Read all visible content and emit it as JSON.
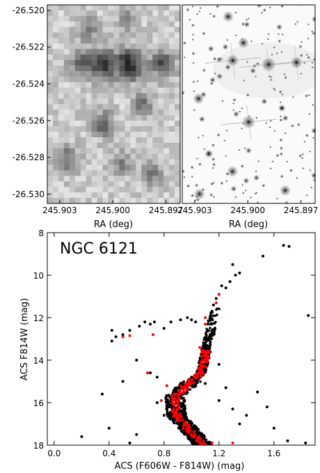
{
  "chart_data": [
    {
      "type": "heatmap",
      "panel": "top-left",
      "description_colormap": "grayscale",
      "xlabel": "RA (deg)",
      "x_ticks": [
        "245.903",
        "245.900",
        "245.897"
      ],
      "y_ticks": [
        "-26.520",
        "-26.522",
        "-26.524",
        "-26.526",
        "-26.528",
        "-26.530"
      ],
      "xlim": [
        245.9037,
        245.8962
      ],
      "ylim": [
        -26.5305,
        -26.5197
      ]
    },
    {
      "type": "scatter",
      "panel": "top-right",
      "description_colormap": "grayscale",
      "xlabel": "RA (deg)",
      "x_ticks": [
        "245.903",
        "245.900",
        "245.897"
      ],
      "xlim": [
        245.9037,
        245.8962
      ]
    },
    {
      "type": "scatter",
      "panel": "bottom",
      "title": "NGC 6121",
      "xlabel": "ACS (F606W - F814W) (mag)",
      "ylabel": "ACS F814W (mag)",
      "xlim": [
        -0.05,
        1.9
      ],
      "ylim": [
        18,
        8
      ],
      "x_ticks": [
        "0.0",
        "0.4",
        "0.8",
        "1.2",
        "1.6"
      ],
      "y_ticks": [
        "8",
        "10",
        "12",
        "14",
        "16",
        "18"
      ],
      "series": [
        {
          "color": "#000000",
          "points": [
            [
              1.67,
              8.6
            ],
            [
              1.71,
              8.65
            ],
            [
              1.52,
              9.1
            ],
            [
              1.3,
              9.5
            ],
            [
              1.35,
              9.9
            ],
            [
              1.32,
              10.0
            ],
            [
              1.28,
              10.3
            ],
            [
              1.22,
              10.5
            ],
            [
              1.25,
              10.6
            ],
            [
              1.2,
              10.9
            ],
            [
              1.18,
              11.1
            ],
            [
              1.16,
              11.4
            ],
            [
              1.15,
              11.7
            ],
            [
              1.14,
              12.0
            ],
            [
              1.12,
              12.3
            ],
            [
              1.12,
              12.6
            ],
            [
              1.1,
              13.0
            ],
            [
              1.09,
              13.4
            ],
            [
              1.08,
              13.8
            ],
            [
              1.07,
              14.2
            ],
            [
              1.06,
              14.5
            ],
            [
              1.0,
              14.8
            ],
            [
              0.93,
              15.1
            ],
            [
              0.88,
              15.5
            ],
            [
              0.86,
              15.9
            ],
            [
              0.86,
              16.3
            ],
            [
              0.88,
              16.7
            ],
            [
              0.92,
              17.1
            ],
            [
              0.98,
              17.5
            ],
            [
              1.05,
              17.8
            ],
            [
              1.12,
              17.95
            ],
            [
              0.42,
              12.6
            ],
            [
              0.45,
              12.9
            ],
            [
              0.42,
              13.1
            ],
            [
              0.5,
              12.8
            ],
            [
              0.55,
              12.6
            ],
            [
              0.62,
              12.4
            ],
            [
              0.66,
              12.2
            ],
            [
              0.7,
              12.3
            ],
            [
              0.73,
              12.2
            ],
            [
              0.8,
              12.5
            ],
            [
              0.85,
              12.2
            ],
            [
              0.92,
              12.1
            ],
            [
              0.97,
              12.0
            ],
            [
              1.0,
              12.1
            ],
            [
              1.03,
              12.2
            ],
            [
              0.35,
              15.6
            ],
            [
              0.6,
              17.5
            ],
            [
              0.2,
              17.6
            ],
            [
              0.4,
              17.2
            ],
            [
              1.48,
              15.5
            ],
            [
              1.55,
              16.2
            ],
            [
              1.6,
              17.2
            ],
            [
              1.7,
              17.8
            ],
            [
              1.85,
              11.9
            ],
            [
              1.83,
              17.9
            ],
            [
              0.6,
              14.0
            ],
            [
              0.7,
              14.6
            ],
            [
              0.75,
              14.8
            ],
            [
              1.25,
              15.3
            ],
            [
              1.3,
              16.3
            ],
            [
              1.35,
              17.0
            ],
            [
              1.4,
              16.6
            ],
            [
              0.5,
              15.0
            ],
            [
              0.55,
              17.9
            ],
            [
              0.75,
              16.0
            ],
            [
              0.8,
              16.6
            ],
            [
              1.1,
              15.1
            ],
            [
              1.2,
              15.9
            ],
            [
              1.2,
              14.2
            ]
          ]
        },
        {
          "color": "#ff0000",
          "points": [
            [
              1.2,
              10.9
            ],
            [
              1.18,
              11.3
            ],
            [
              1.1,
              12.0
            ],
            [
              1.1,
              12.3
            ],
            [
              1.06,
              13.4
            ],
            [
              1.07,
              13.8
            ],
            [
              1.08,
              14.3
            ],
            [
              1.05,
              14.6
            ],
            [
              0.98,
              14.9
            ],
            [
              0.92,
              15.2
            ],
            [
              0.88,
              15.6
            ],
            [
              0.86,
              16.0
            ],
            [
              0.87,
              16.4
            ],
            [
              0.9,
              16.8
            ],
            [
              0.94,
              17.2
            ],
            [
              1.0,
              17.5
            ],
            [
              1.06,
              17.7
            ],
            [
              1.15,
              17.9
            ],
            [
              0.5,
              12.9
            ],
            [
              0.55,
              12.85
            ],
            [
              0.72,
              12.8
            ],
            [
              0.82,
              15.2
            ],
            [
              0.78,
              15.9
            ],
            [
              0.68,
              14.6
            ],
            [
              1.3,
              17.9
            ]
          ]
        }
      ]
    }
  ]
}
